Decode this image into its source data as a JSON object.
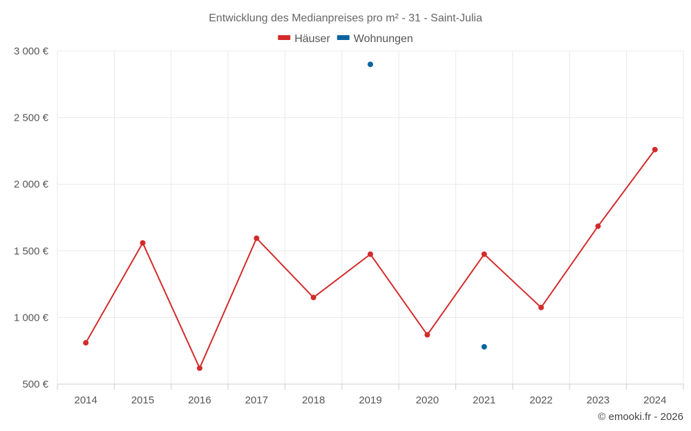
{
  "chart_data": {
    "type": "line",
    "title": "Entwicklung des Medianpreises pro m² - 31 - Saint-Julia",
    "xlabel": "",
    "ylabel": "",
    "categories": [
      "2014",
      "2015",
      "2016",
      "2017",
      "2018",
      "2019",
      "2020",
      "2021",
      "2022",
      "2023",
      "2024"
    ],
    "ylim": [
      500,
      3000
    ],
    "yticks": [
      500,
      1000,
      1500,
      2000,
      2500,
      3000
    ],
    "ytick_labels": [
      "500 €",
      "1 000 €",
      "1 500 €",
      "2 000 €",
      "2 500 €",
      "3 000 €"
    ],
    "grid": true,
    "legend_position": "top-center",
    "series": [
      {
        "name": "Häuser",
        "color": "#d42a2a",
        "line": true,
        "values": [
          810,
          1560,
          620,
          1595,
          1150,
          1475,
          870,
          1475,
          1075,
          1685,
          2260
        ]
      },
      {
        "name": "Wohnungen",
        "color": "#0a64a0",
        "line": false,
        "values": [
          null,
          null,
          null,
          null,
          null,
          2900,
          null,
          780,
          null,
          null,
          null
        ]
      }
    ]
  },
  "credit": "© emooki.fr - 2026"
}
